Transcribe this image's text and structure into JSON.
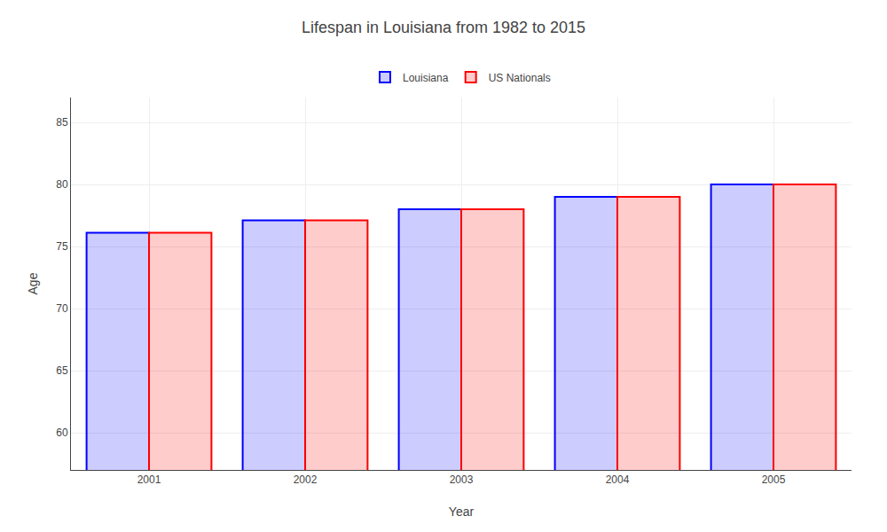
{
  "chart_data": {
    "type": "bar",
    "title": "Lifespan in Louisiana from 1982 to 2015",
    "x_label": "Year",
    "y_label": "Age",
    "categories": [
      "2001",
      "2002",
      "2003",
      "2004",
      "2005"
    ],
    "series": [
      {
        "name": "Louisiana",
        "color": "#0000ff",
        "values": [
          76.1,
          77.1,
          78.0,
          79.0,
          80.0
        ]
      },
      {
        "name": "US Nationals",
        "color": "#ff0000",
        "values": [
          76.1,
          77.1,
          78.0,
          79.0,
          80.0
        ]
      }
    ],
    "ylim": [
      57,
      87
    ],
    "yticks": [
      60,
      65,
      70,
      75,
      80,
      85
    ],
    "grid": true,
    "legend": "top"
  }
}
